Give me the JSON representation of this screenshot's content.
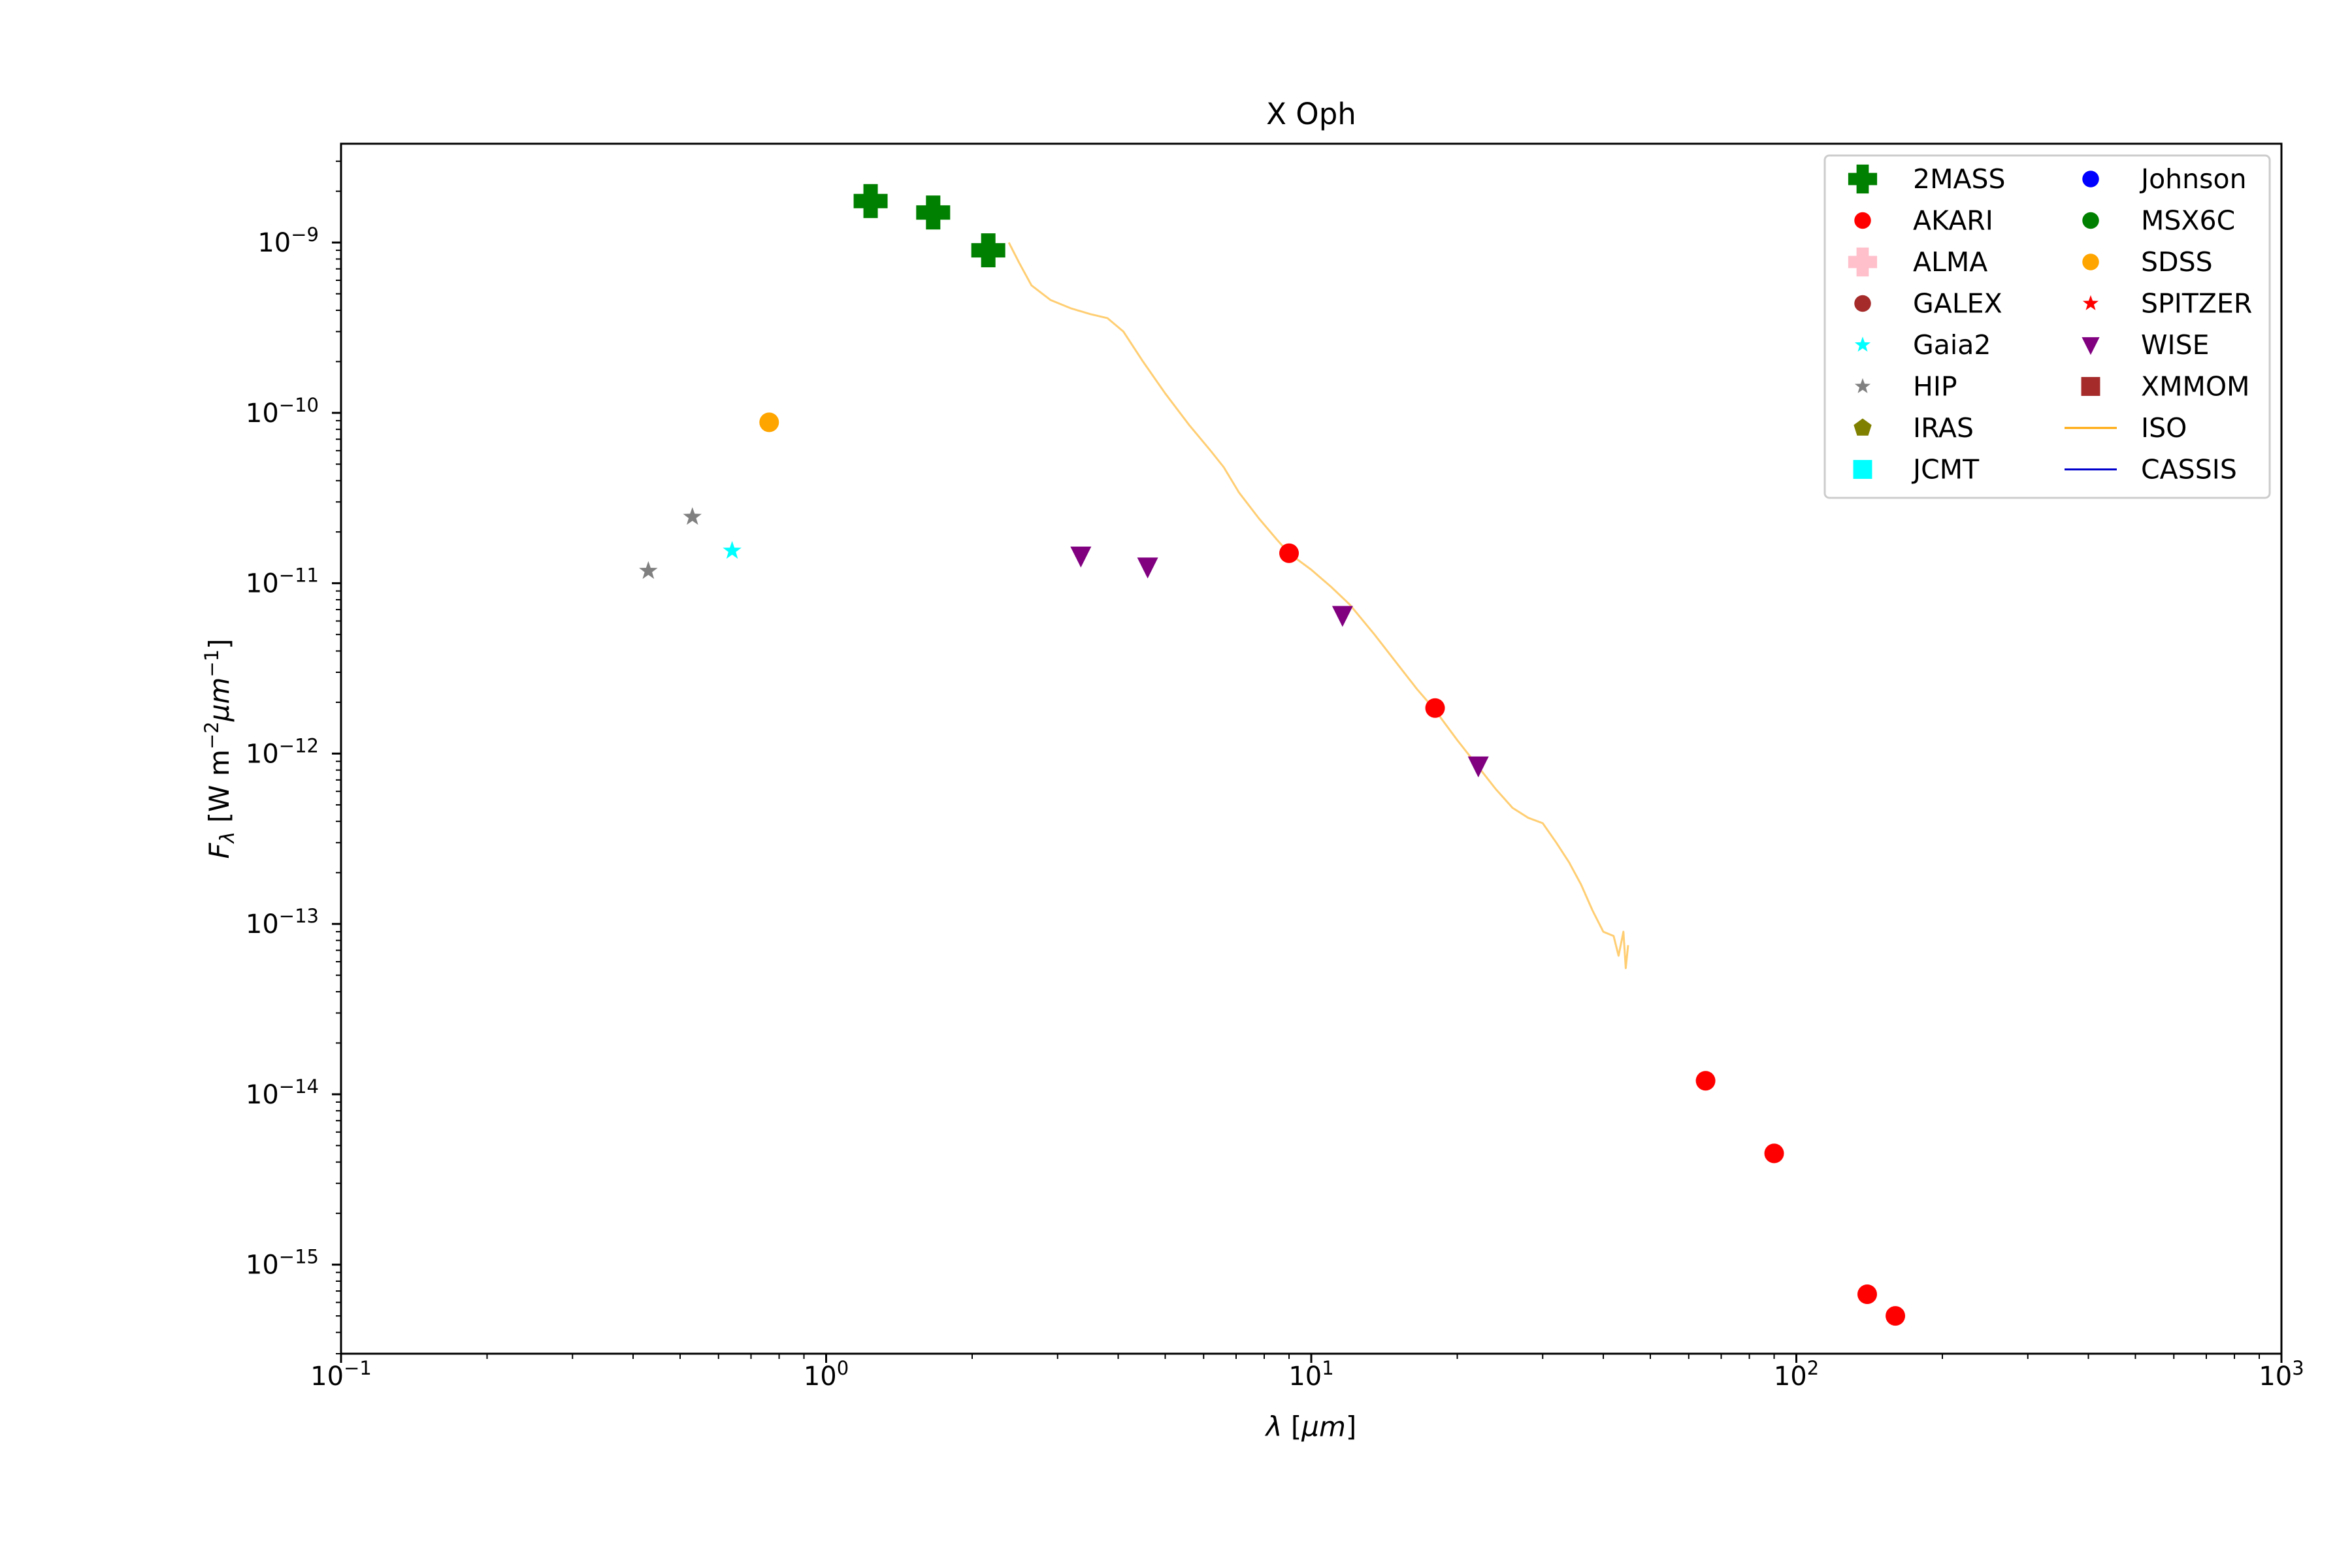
{
  "chart_data": {
    "type": "scatter",
    "title": "X Oph",
    "xlabel": "λ [μm]",
    "ylabel": "F_λ [W m⁻² μm⁻¹]",
    "xscale": "log",
    "yscale": "log",
    "xlim": [
      0.1,
      1000
    ],
    "ylim": [
      3e-16,
      3.8e-09
    ],
    "grid": false,
    "legend_position": "top-right",
    "xticks": [
      {
        "base": "10",
        "exp": "−1"
      },
      {
        "base": "10",
        "exp": "0"
      },
      {
        "base": "10",
        "exp": "1"
      },
      {
        "base": "10",
        "exp": "2"
      },
      {
        "base": "10",
        "exp": "3"
      }
    ],
    "yticks": [
      {
        "base": "10",
        "exp": "−9"
      },
      {
        "base": "10",
        "exp": "−10"
      },
      {
        "base": "10",
        "exp": "−11"
      },
      {
        "base": "10",
        "exp": "−12"
      },
      {
        "base": "10",
        "exp": "−13"
      },
      {
        "base": "10",
        "exp": "−14"
      },
      {
        "base": "10",
        "exp": "−15"
      }
    ],
    "series": [
      {
        "name": "2MASS",
        "marker": "plus",
        "color": "#008000",
        "points": [
          [
            1.235,
            1.75e-09
          ],
          [
            1.662,
            1.5e-09
          ],
          [
            2.159,
            9e-10
          ]
        ]
      },
      {
        "name": "AKARI",
        "marker": "circle",
        "color": "#ff0000",
        "points": [
          [
            9.0,
            1.5e-11
          ],
          [
            18.0,
            1.85e-12
          ],
          [
            65.0,
            1.2e-14
          ],
          [
            90.0,
            4.5e-15
          ],
          [
            140.0,
            6.7e-16
          ],
          [
            160.0,
            5e-16
          ]
        ]
      },
      {
        "name": "ALMA",
        "marker": "plus",
        "color": "#ffc0cb",
        "points": []
      },
      {
        "name": "GALEX",
        "marker": "circle",
        "color": "#a52a2a",
        "points": []
      },
      {
        "name": "Gaia2",
        "marker": "star",
        "color": "#00ffff",
        "points": [
          [
            0.64,
            1.55e-11
          ]
        ]
      },
      {
        "name": "HIP",
        "marker": "star",
        "color": "#808080",
        "points": [
          [
            0.43,
            1.18e-11
          ],
          [
            0.53,
            2.45e-11
          ]
        ]
      },
      {
        "name": "IRAS",
        "marker": "pentagon",
        "color": "#808000",
        "points": []
      },
      {
        "name": "JCMT",
        "marker": "square",
        "color": "#00ffff",
        "points": []
      },
      {
        "name": "Johnson",
        "marker": "circle",
        "color": "#0000ff",
        "points": []
      },
      {
        "name": "MSX6C",
        "marker": "circle",
        "color": "#008000",
        "points": []
      },
      {
        "name": "SDSS",
        "marker": "circle",
        "color": "#ffa500",
        "points": [
          [
            0.763,
            8.8e-11
          ]
        ]
      },
      {
        "name": "SPITZER",
        "marker": "star",
        "color": "#ff0000",
        "points": []
      },
      {
        "name": "WISE",
        "marker": "triangle-down",
        "color": "#800080",
        "points": [
          [
            3.35,
            1.45e-11
          ],
          [
            4.6,
            1.25e-11
          ],
          [
            11.6,
            6.5e-12
          ],
          [
            22.1,
            8.5e-13
          ]
        ]
      },
      {
        "name": "XMMOM",
        "marker": "square",
        "color": "#a52a2a",
        "points": []
      },
      {
        "name": "ISO",
        "marker": "line",
        "color": "#ffa500",
        "points": [
          [
            2.38,
            1e-09
          ],
          [
            2.5,
            7.6e-10
          ],
          [
            2.65,
            5.6e-10
          ],
          [
            2.9,
            4.6e-10
          ],
          [
            3.2,
            4.1e-10
          ],
          [
            3.5,
            3.8e-10
          ],
          [
            3.8,
            3.6e-10
          ],
          [
            4.1,
            3e-10
          ],
          [
            4.5,
            2e-10
          ],
          [
            5.0,
            1.3e-10
          ],
          [
            5.6,
            8.5e-11
          ],
          [
            6.2,
            6e-11
          ],
          [
            6.6,
            4.8e-11
          ],
          [
            7.1,
            3.4e-11
          ],
          [
            7.8,
            2.4e-11
          ],
          [
            8.5,
            1.8e-11
          ],
          [
            9.0,
            1.5e-11
          ],
          [
            10.0,
            1.2e-11
          ],
          [
            11.0,
            9.5e-12
          ],
          [
            12.0,
            7.5e-12
          ],
          [
            13.5,
            5e-12
          ],
          [
            15.0,
            3.4e-12
          ],
          [
            16.5,
            2.4e-12
          ],
          [
            18.0,
            1.8e-12
          ],
          [
            20.0,
            1.2e-12
          ],
          [
            22.0,
            8.5e-13
          ],
          [
            24.0,
            6.2e-13
          ],
          [
            26.0,
            4.8e-13
          ],
          [
            28.0,
            4.2e-13
          ],
          [
            30.0,
            3.9e-13
          ],
          [
            32.0,
            3e-13
          ],
          [
            34.0,
            2.3e-13
          ],
          [
            36.0,
            1.7e-13
          ],
          [
            38.0,
            1.2e-13
          ],
          [
            40.0,
            9e-14
          ],
          [
            42.0,
            8.5e-14
          ],
          [
            43.0,
            6.5e-14
          ],
          [
            44.0,
            9e-14
          ],
          [
            44.5,
            5.5e-14
          ],
          [
            45.0,
            7.5e-14
          ]
        ]
      },
      {
        "name": "CASSIS",
        "marker": "line",
        "color": "#0000cd",
        "points": []
      }
    ]
  }
}
